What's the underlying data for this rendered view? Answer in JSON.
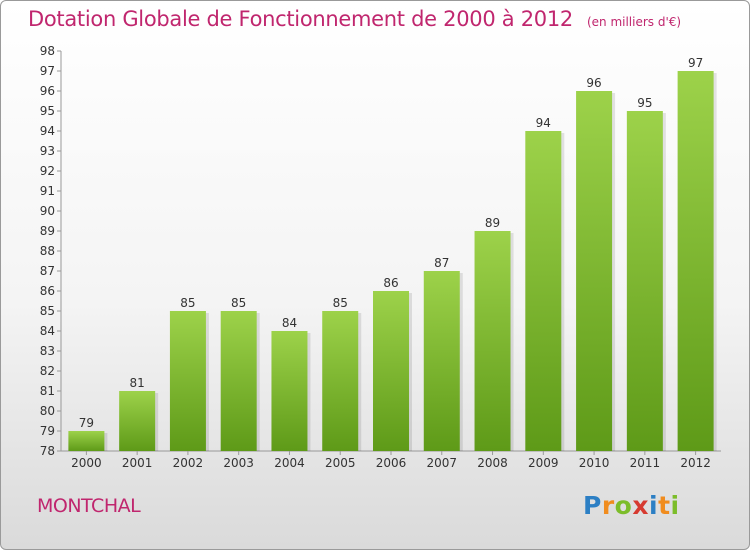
{
  "title": "Dotation Globale de Fonctionnement de 2000 à 2012",
  "subtitle": "(en milliers d'€)",
  "commune": "MONTCHAL",
  "logo": "Proxiti",
  "colors": {
    "bar_top": "#9dd24a",
    "bar_bottom": "#5e9a18",
    "accent": "#c0266e"
  },
  "chart_data": {
    "type": "bar",
    "categories": [
      "2000",
      "2001",
      "2002",
      "2003",
      "2004",
      "2005",
      "2006",
      "2007",
      "2008",
      "2009",
      "2010",
      "2011",
      "2012"
    ],
    "values": [
      79,
      81,
      85,
      85,
      84,
      85,
      86,
      87,
      89,
      94,
      96,
      95,
      97
    ],
    "title": "Dotation Globale de Fonctionnement de 2000 à 2012",
    "ylim": [
      78,
      98
    ],
    "yticks": [
      78,
      79,
      80,
      81,
      82,
      83,
      84,
      85,
      86,
      87,
      88,
      89,
      90,
      91,
      92,
      93,
      94,
      95,
      96,
      97,
      98
    ],
    "grid": false,
    "data_labels": true
  }
}
